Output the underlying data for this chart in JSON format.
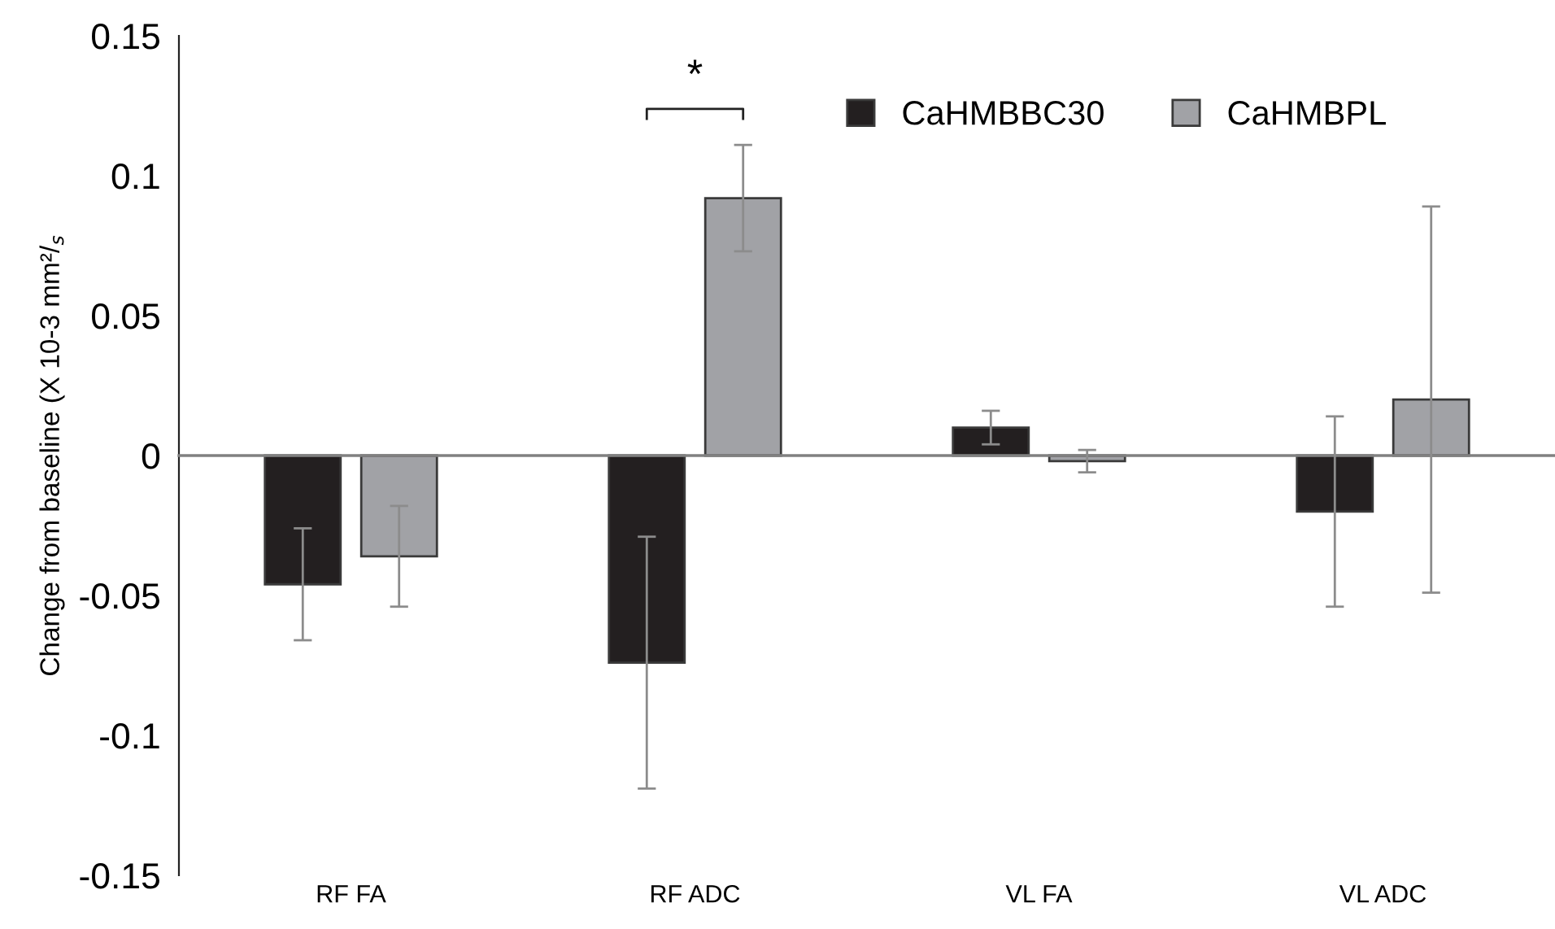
{
  "chart_data": {
    "type": "bar",
    "ylabel": "Change from baseline (X 10-3 mm²/$_{s}$",
    "categories": [
      "RF FA",
      "RF ADC",
      "VL FA",
      "VL ADC"
    ],
    "series": [
      {
        "name": "CaHMBBC30",
        "color": "#231f20",
        "values": [
          -0.046,
          -0.074,
          0.01,
          -0.02
        ],
        "errors": [
          0.02,
          0.045,
          0.006,
          0.034
        ]
      },
      {
        "name": "CaHMBPL",
        "color": "#a1a2a6",
        "values": [
          -0.036,
          0.092,
          -0.002,
          0.02
        ],
        "errors": [
          0.018,
          0.019,
          0.004,
          0.069
        ]
      }
    ],
    "ylim": [
      -0.15,
      0.15
    ],
    "yticks": [
      {
        "value": -0.15,
        "label": "-0.15"
      },
      {
        "value": -0.1,
        "label": "-0.1"
      },
      {
        "value": -0.05,
        "label": "-0.05"
      },
      0,
      0.05,
      0.1,
      0.15
    ],
    "annotations": [
      "*"
    ],
    "legend": "top right"
  }
}
